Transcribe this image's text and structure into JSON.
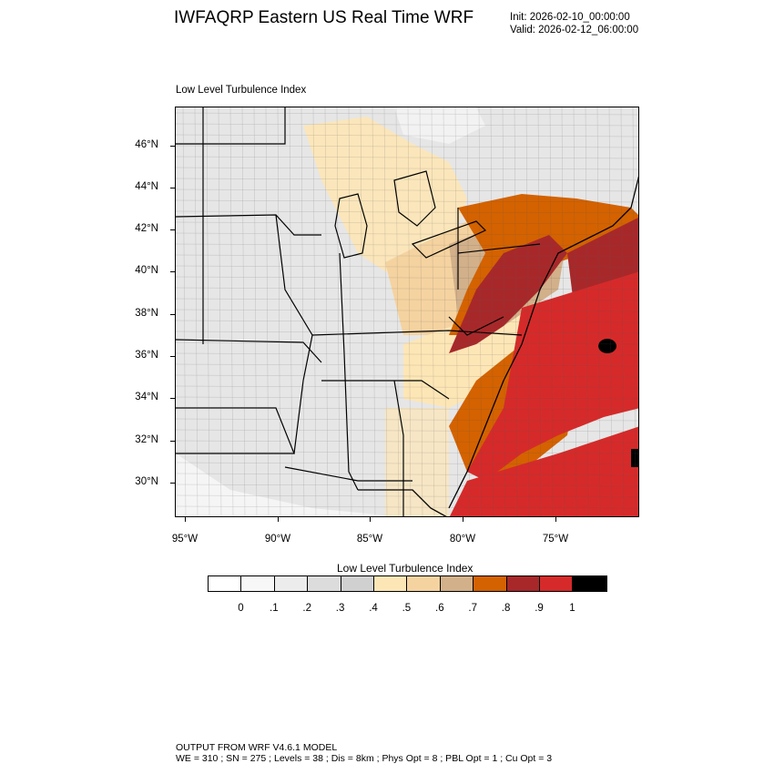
{
  "header": {
    "title": "IWFAQRP Eastern US Real Time WRF",
    "init": "Init: 2026-02-10_00:00:00",
    "valid": "Valid: 2026-02-12_06:00:00"
  },
  "panel": {
    "title": "Low Level Turbulence Index"
  },
  "axes": {
    "lat_labels": [
      "46°N",
      "44°N",
      "42°N",
      "40°N",
      "38°N",
      "36°N",
      "34°N",
      "32°N",
      "30°N"
    ],
    "lon_labels": [
      "95°W",
      "90°W",
      "85°W",
      "80°W",
      "75°W"
    ]
  },
  "legend": {
    "title": "Low Level Turbulence Index",
    "labels": [
      "0",
      ".1",
      ".2",
      ".3",
      ".4",
      ".5",
      ".6",
      ".7",
      ".8",
      ".9",
      "1"
    ],
    "colors": [
      "#ffffff",
      "#f7f7f7",
      "#ececec",
      "#dcdcdc",
      "#d0d0d0",
      "#fde6b6",
      "#f5d3a0",
      "#d2b08a",
      "#d46200",
      "#a8282a",
      "#d62a2a",
      "#000000"
    ]
  },
  "footer": {
    "line1": "OUTPUT FROM WRF V4.6.1 MODEL",
    "line2": "WE = 310 ; SN = 275 ; Levels = 38 ; Dis = 8km ; Phys Opt = 8 ; PBL Opt = 1 ; Cu Opt = 3"
  }
}
